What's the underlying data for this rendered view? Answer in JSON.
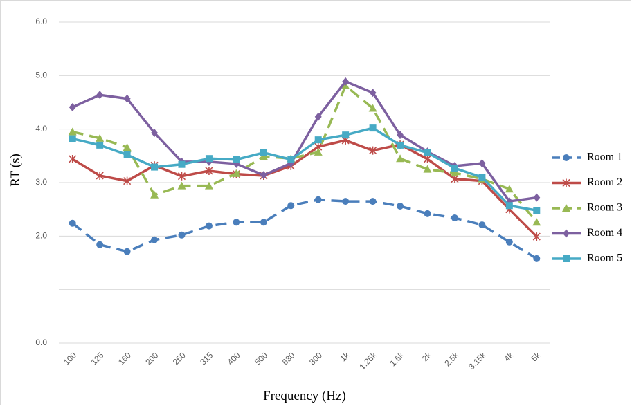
{
  "chart_data": {
    "type": "line",
    "x_label": "Frequency (Hz)",
    "y_label": "RT (s)",
    "categories": [
      "100",
      "125",
      "160",
      "200",
      "250",
      "315",
      "400",
      "500",
      "630",
      "800",
      "1k",
      "1.25k",
      "1.6k",
      "2k",
      "2.5k",
      "3.15k",
      "4k",
      "5k"
    ],
    "series": [
      {
        "name": "Room 1",
        "color": "#4a7ebb",
        "dashed": true,
        "marker": "circle",
        "values": [
          2.24,
          1.84,
          1.71,
          1.93,
          2.02,
          2.19,
          2.26,
          2.26,
          2.57,
          2.68,
          2.65,
          2.65,
          2.56,
          2.42,
          2.34,
          2.21,
          1.89,
          1.58
        ]
      },
      {
        "name": "Room 2",
        "color": "#be4b48",
        "dashed": false,
        "marker": "star",
        "values": [
          3.44,
          3.13,
          3.03,
          3.32,
          3.12,
          3.22,
          3.16,
          3.13,
          3.31,
          3.67,
          3.79,
          3.6,
          3.71,
          3.44,
          3.07,
          3.03,
          2.5,
          1.99
        ]
      },
      {
        "name": "Room 3",
        "color": "#98b954",
        "dashed": true,
        "marker": "triangle",
        "values": [
          3.95,
          3.83,
          3.66,
          2.77,
          2.94,
          2.94,
          3.17,
          3.49,
          3.45,
          3.57,
          4.81,
          4.39,
          3.45,
          3.25,
          3.18,
          3.07,
          2.88,
          2.26
        ]
      },
      {
        "name": "Room 4",
        "color": "#7d60a0",
        "dashed": false,
        "marker": "diamond",
        "values": [
          4.41,
          4.64,
          4.57,
          3.93,
          3.39,
          3.39,
          3.35,
          3.14,
          3.36,
          4.23,
          4.89,
          4.68,
          3.89,
          3.58,
          3.31,
          3.36,
          2.65,
          2.72
        ]
      },
      {
        "name": "Room 5",
        "color": "#46aac5",
        "dashed": false,
        "marker": "square",
        "values": [
          3.82,
          3.7,
          3.52,
          3.29,
          3.34,
          3.45,
          3.43,
          3.56,
          3.43,
          3.8,
          3.89,
          4.02,
          3.7,
          3.56,
          3.27,
          3.1,
          2.57,
          2.48
        ]
      }
    ],
    "ylim": [
      0,
      6
    ],
    "yticks": [
      {
        "value": 0,
        "label": "0.0"
      },
      {
        "value": 2,
        "label": "2.0"
      },
      {
        "value": 3,
        "label": "3.0"
      },
      {
        "value": 4,
        "label": "4.0"
      },
      {
        "value": 5,
        "label": "5.0"
      },
      {
        "value": 6,
        "label": "6.0"
      }
    ],
    "ygrid": [
      0,
      1,
      2,
      3,
      4,
      5,
      6
    ],
    "legend": "right"
  }
}
